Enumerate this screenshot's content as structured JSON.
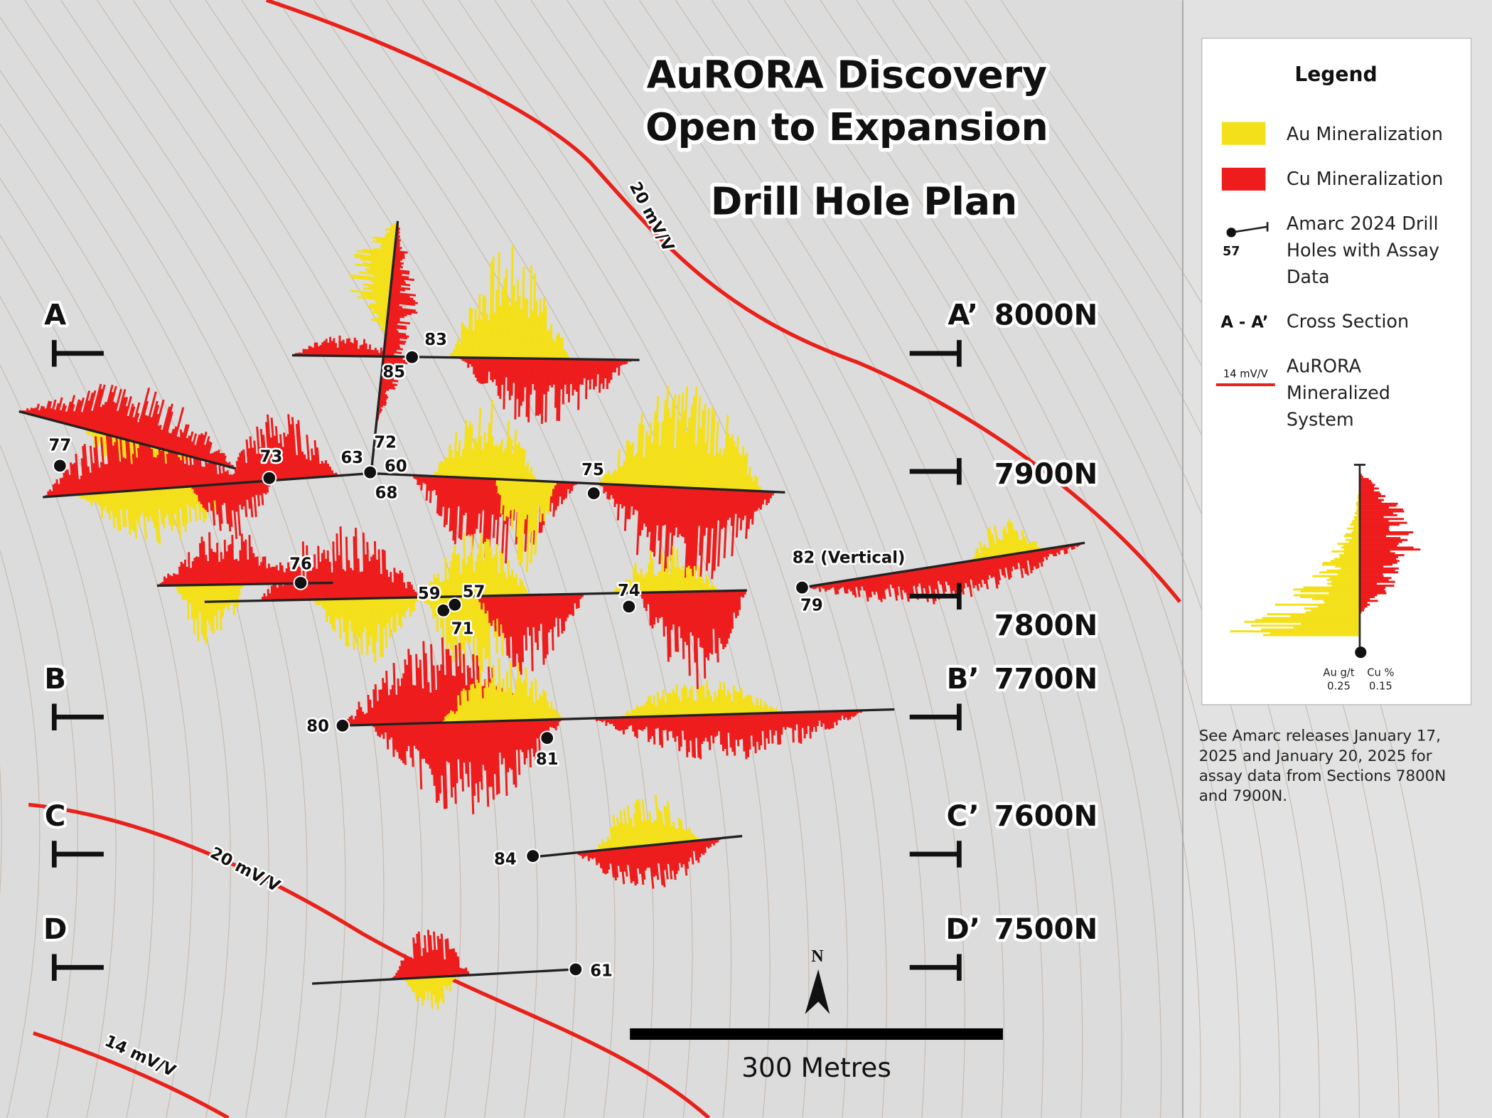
{
  "title": {
    "line1": "AuRORA Discovery",
    "line2": "Open to Expansion",
    "subtitle": "Drill Hole Plan"
  },
  "sections": [
    {
      "start": "A",
      "end": "A’",
      "northing": "8000N"
    },
    {
      "start": "B",
      "end": "B’",
      "northing": "7700N"
    },
    {
      "start": "C",
      "end": "C’",
      "northing": "7600N"
    },
    {
      "start": "D",
      "end": "D’",
      "northing": "7500N"
    }
  ],
  "other_northings": [
    "7900N",
    "7800N"
  ],
  "contour_labels": [
    "20 mV/V",
    "20 mV/V",
    "14 mV/V"
  ],
  "drill_holes": [
    "77",
    "73",
    "63",
    "72",
    "60",
    "68",
    "83",
    "85",
    "75",
    "82 (Vertical)",
    "79",
    "76",
    "59",
    "57",
    "71",
    "74",
    "80",
    "81",
    "84",
    "61"
  ],
  "legend": {
    "title": "Legend",
    "au": "Au Mineralization",
    "cu": "Cu Mineralization",
    "holes": [
      "Amarc 2024 Drill",
      "Holes with Assay",
      "Data"
    ],
    "hole_example": "57",
    "section_symbol": "A - A’",
    "section": "Cross Section",
    "contour_example": "14 mV/V",
    "system": [
      "AuRORA",
      "Mineralized",
      "System"
    ],
    "au_axis": "Au g/t",
    "au_scale": "0.25",
    "cu_axis": "Cu %",
    "cu_scale": "0.15"
  },
  "note": [
    "See Amarc releases January 17,",
    "2025 and January 20, 2025 for",
    "assay data from Sections 7800N",
    "and 7900N."
  ],
  "scale_bar": "300 Metres",
  "north": "N"
}
